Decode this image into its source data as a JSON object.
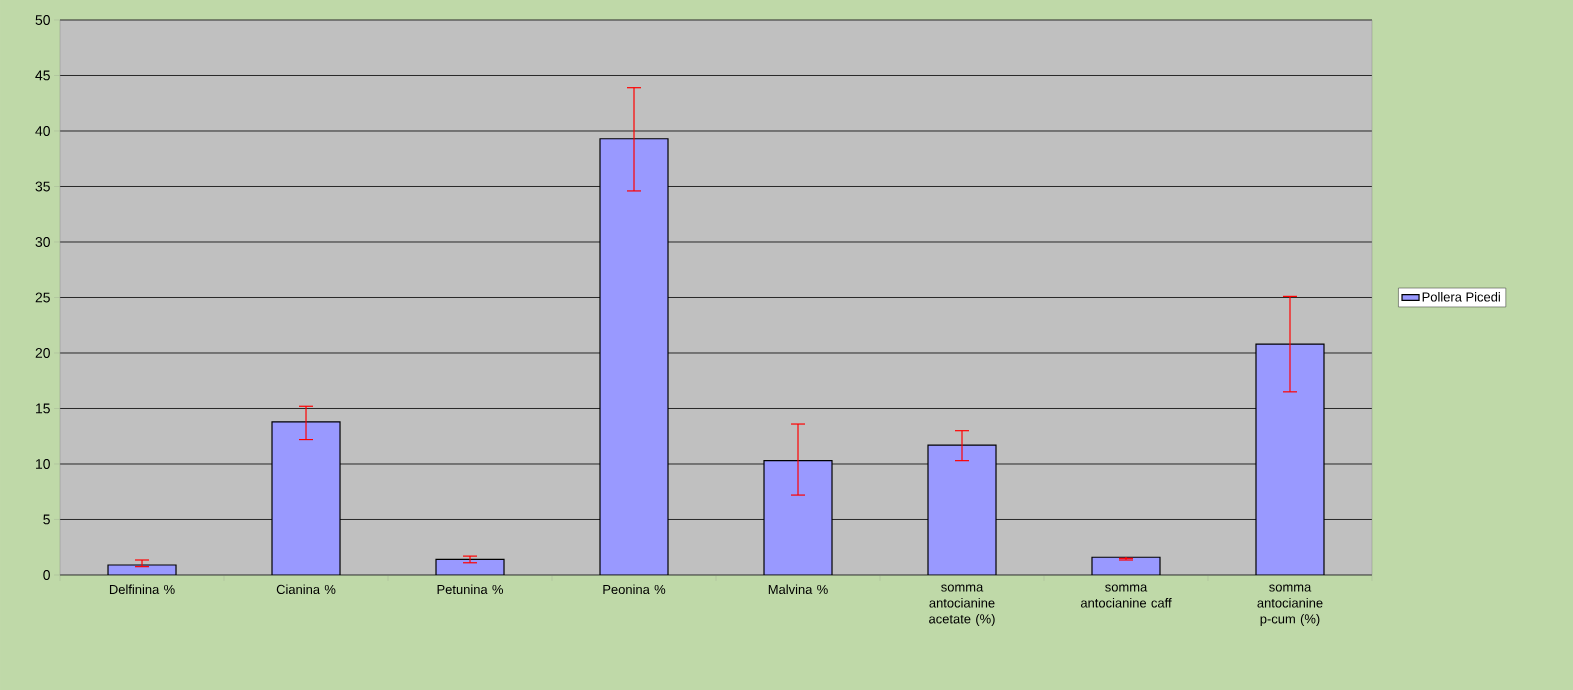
{
  "chart_data": {
    "type": "bar",
    "categories": [
      "Delfinina %",
      "Cianina %",
      "Petunina %",
      "Peonina %",
      "Malvina %",
      "somma antocianine acetate (%)",
      "somma antocianine caff",
      "somma antocianine p-cum (%)"
    ],
    "series": [
      {
        "name": "Pollera Picedi",
        "color": "#9999ff",
        "values": [
          0.9,
          13.8,
          1.4,
          39.3,
          10.3,
          11.7,
          1.6,
          20.8
        ],
        "errors": [
          [
            0.75,
            1.35
          ],
          [
            12.2,
            15.2
          ],
          [
            1.1,
            1.7
          ],
          [
            34.6,
            43.9
          ],
          [
            7.2,
            13.6
          ],
          [
            10.3,
            13.0
          ],
          [
            1.35,
            1.5
          ],
          [
            16.5,
            25.1
          ]
        ]
      }
    ],
    "ylim": [
      0,
      50
    ],
    "yticks": [
      0,
      5,
      10,
      15,
      20,
      25,
      30,
      35,
      40,
      45,
      50
    ],
    "grid": "y",
    "legend": "right"
  }
}
